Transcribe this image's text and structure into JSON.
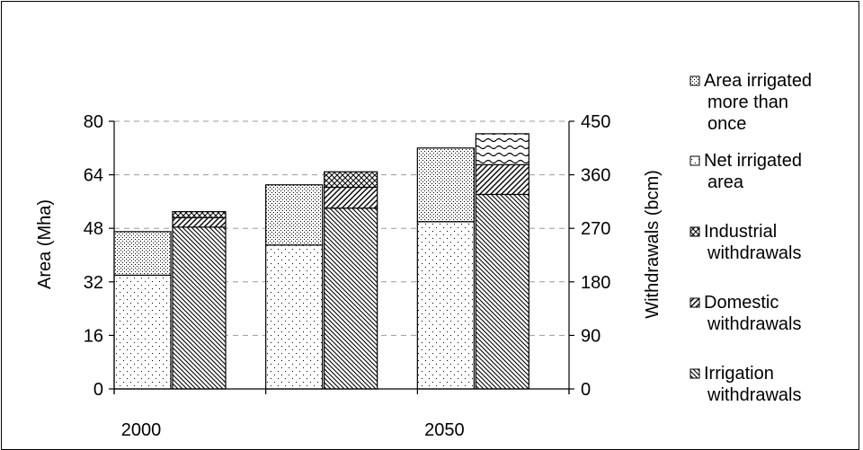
{
  "chart_data": {
    "type": "bar",
    "categories": [
      "2000",
      "",
      "2050"
    ],
    "x_tick_labels": [
      "2000",
      "2050"
    ],
    "left_axis": {
      "label": "Area (Mha)",
      "ylim": [
        0,
        80
      ],
      "ticks": [
        0,
        16,
        32,
        48,
        64,
        80
      ]
    },
    "right_axis": {
      "label": "Withdrawals (bcm)",
      "ylim": [
        0,
        450
      ],
      "ticks": [
        0,
        90,
        180,
        270,
        360,
        450
      ]
    },
    "area_stack": [
      {
        "name": "Net irrigated area",
        "pattern": "fine-dots",
        "values": [
          34,
          43,
          50
        ]
      },
      {
        "name": "Area irrigated more than once",
        "pattern": "dense-dots",
        "values": [
          13,
          18,
          22
        ]
      }
    ],
    "withdrawal_stack": [
      {
        "name": "Irrigation withdrawals",
        "pattern": "back-diagonal",
        "values": [
          272,
          304,
          327
        ]
      },
      {
        "name": "Domestic withdrawals",
        "pattern": "forward-diagonal",
        "values": [
          16,
          35,
          50
        ]
      },
      {
        "name": "Industrial withdrawals",
        "pattern": "cross-diagonal",
        "values": [
          10,
          26,
          0
        ]
      },
      {
        "name": "",
        "pattern": "waves",
        "values": [
          0,
          0,
          52
        ]
      }
    ],
    "gridlines": "dashed",
    "legend_position": "right",
    "legend": [
      {
        "lines": [
          "Area irrigated",
          "more than",
          "once"
        ],
        "pattern": "dense-dots"
      },
      {
        "lines": [
          "Net irrigated",
          "area"
        ],
        "pattern": "fine-dots"
      },
      {
        "lines": [
          "Industrial",
          "withdrawals"
        ],
        "pattern": "cross-diagonal"
      },
      {
        "lines": [
          "Domestic",
          "withdrawals"
        ],
        "pattern": "forward-diagonal"
      },
      {
        "lines": [
          "Irrigation",
          "withdrawals"
        ],
        "pattern": "back-diagonal"
      }
    ]
  }
}
